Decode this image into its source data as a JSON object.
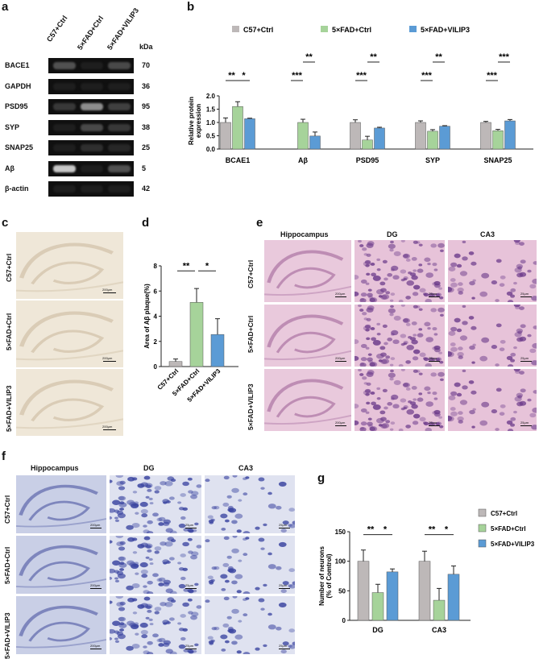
{
  "panel_letters": {
    "a": "a",
    "b": "b",
    "c": "c",
    "d": "d",
    "e": "e",
    "f": "f",
    "g": "g"
  },
  "colors": {
    "ctrl": "#bdb8b8",
    "fad": "#a6d39a",
    "vilip": "#5b9bd5"
  },
  "western": {
    "lanes": [
      "C57+Ctrl",
      "5×FAD+Ctrl",
      "5×FAD+VILIP3"
    ],
    "kda_label": "kDa",
    "rows": [
      {
        "name": "BACE1",
        "kda": "70"
      },
      {
        "name": "GAPDH",
        "kda": "36"
      },
      {
        "name": "PSD95",
        "kda": "95"
      },
      {
        "name": "SYP",
        "kda": "38"
      },
      {
        "name": "SNAP25",
        "kda": "25"
      },
      {
        "name": "Aβ",
        "kda": "5"
      },
      {
        "name": "β-actin",
        "kda": "42"
      }
    ]
  },
  "chart_data": [
    {
      "id": "b",
      "type": "bar",
      "legend": [
        "C57+Ctrl",
        "5×FAD+Ctrl",
        "5×FAD+VILIP3"
      ],
      "ylabel": "Relative protein\nexpression",
      "ylim": [
        0,
        2.0
      ],
      "yticks": [
        "0.0",
        "0.5",
        "1.0",
        "1.5",
        "2.0"
      ],
      "categories": [
        "BCAE1",
        "Aβ",
        "PSD95",
        "SYP",
        "SNAP25"
      ],
      "series": [
        {
          "name": "C57+Ctrl",
          "values": [
            1.0,
            null,
            1.0,
            1.0,
            1.0
          ],
          "err": [
            0.17,
            null,
            0.1,
            0.06,
            0.04
          ]
        },
        {
          "name": "5×FAD+Ctrl",
          "values": [
            1.6,
            1.0,
            0.34,
            0.67,
            0.69
          ],
          "err": [
            0.18,
            0.12,
            0.14,
            0.06,
            0.05
          ]
        },
        {
          "name": "5×FAD+VILIP3",
          "values": [
            1.14,
            0.49,
            0.79,
            0.86,
            1.06
          ],
          "err": [
            0.02,
            0.15,
            0.03,
            0.02,
            0.05
          ]
        }
      ],
      "significance": [
        {
          "label": "**",
          "cat": 0,
          "from": 0,
          "to": 1,
          "level": 2.0
        },
        {
          "label": "*",
          "cat": 0,
          "from": 1,
          "to": 2,
          "level": 2.0
        },
        {
          "label": "***",
          "cat": 1,
          "from": 0,
          "to": 1,
          "level": 2.0
        },
        {
          "label": "**",
          "cat": 1,
          "from": 1,
          "to": 2,
          "level": 2.45
        },
        {
          "label": "***",
          "cat": 2,
          "from": 0,
          "to": 1,
          "level": 2.0
        },
        {
          "label": "**",
          "cat": 2,
          "from": 1,
          "to": 2,
          "level": 2.45
        },
        {
          "label": "***",
          "cat": 3,
          "from": 0,
          "to": 1,
          "level": 2.0
        },
        {
          "label": "**",
          "cat": 3,
          "from": 1,
          "to": 2,
          "level": 2.45
        },
        {
          "label": "***",
          "cat": 4,
          "from": 0,
          "to": 1,
          "level": 2.0
        },
        {
          "label": "***",
          "cat": 4,
          "from": 1,
          "to": 2,
          "level": 2.45
        }
      ]
    },
    {
      "id": "d",
      "type": "bar",
      "ylabel": "Area of Aβ plaque(%)",
      "ylim": [
        0,
        8
      ],
      "yticks": [
        "0",
        "2",
        "4",
        "6",
        "8"
      ],
      "categories": [
        "C57+Ctrl",
        "5×FAD+Ctrl",
        "5×FAD+VILIP3"
      ],
      "values": [
        0.4,
        5.1,
        2.55
      ],
      "err": [
        0.2,
        1.1,
        1.25
      ],
      "significance": [
        {
          "label": "**",
          "from": 0,
          "to": 1
        },
        {
          "label": "*",
          "from": 1,
          "to": 2
        }
      ]
    },
    {
      "id": "g",
      "type": "bar",
      "legend": [
        "C57+Ctrl",
        "5×FAD+Ctrl",
        "5×FAD+VILIP3"
      ],
      "ylabel": "Number of neurons\n(% of Comtrol)",
      "ylim": [
        0,
        150
      ],
      "yticks": [
        "0",
        "50",
        "100",
        "150"
      ],
      "categories": [
        "DG",
        "CA3"
      ],
      "series": [
        {
          "name": "C57+Ctrl",
          "values": [
            100,
            100
          ],
          "err": [
            19,
            17
          ]
        },
        {
          "name": "5×FAD+Ctrl",
          "values": [
            47,
            34
          ],
          "err": [
            14,
            20
          ]
        },
        {
          "name": "5×FAD+VILIP3",
          "values": [
            82,
            78
          ],
          "err": [
            5,
            14
          ]
        }
      ],
      "significance": [
        {
          "label": "**",
          "cat": 0,
          "from": 0,
          "to": 1
        },
        {
          "label": "*",
          "cat": 0,
          "from": 1,
          "to": 2
        },
        {
          "label": "**",
          "cat": 1,
          "from": 0,
          "to": 1
        },
        {
          "label": "*",
          "cat": 1,
          "from": 1,
          "to": 2
        }
      ]
    }
  ],
  "panel_c": {
    "rows": [
      "C57+Ctrl",
      "5×FAD+Ctrl",
      "5×FAD+VILIP3"
    ],
    "scale": "200μm"
  },
  "panel_e": {
    "columns": [
      "Hippocampus",
      "DG",
      "CA3"
    ],
    "rows": [
      "C57+Ctrl",
      "5×FAD+Ctrl",
      "5×FAD+VILIP3"
    ],
    "scale_hip": "200μm",
    "scale_zoom": "25μm"
  },
  "panel_f": {
    "columns": [
      "Hippocampus",
      "DG",
      "CA3"
    ],
    "rows": [
      "C57+Ctrl",
      "5×FAD+Ctrl",
      "5×FAD+VILIP3"
    ],
    "scale_hip": "200μm",
    "scale_zoom": "25μm"
  }
}
